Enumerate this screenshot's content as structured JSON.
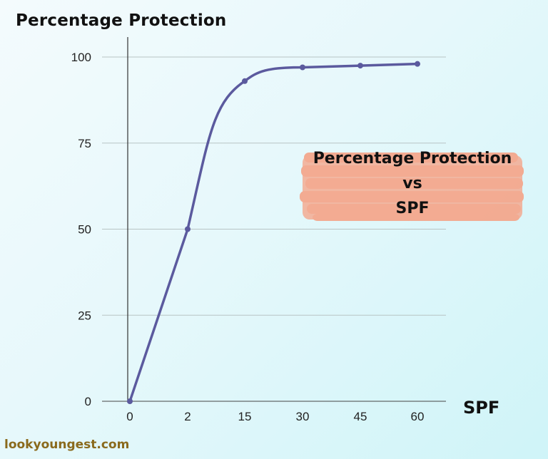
{
  "chart_data": {
    "type": "line",
    "title": "Percentage Protection vs SPF",
    "xlabel": "SPF",
    "ylabel": "Percentage Protection",
    "categories": [
      "0",
      "2",
      "15",
      "30",
      "45",
      "60"
    ],
    "series": [
      {
        "name": "Percentage Protection",
        "values": [
          0,
          50,
          93,
          97,
          97.5,
          98
        ],
        "color": "#5b5a9e"
      }
    ],
    "yticks": [
      0,
      25,
      50,
      75,
      100
    ],
    "ylim": [
      0,
      100
    ],
    "grid": true,
    "smooth": true,
    "annotation": {
      "lines": [
        "Percentage Protection",
        "vs",
        "SPF"
      ],
      "background": "#f4a58a"
    }
  },
  "labels": {
    "y_title": "Percentage Protection",
    "x_title": "SPF",
    "annotation_line1": "Percentage Protection",
    "annotation_line2": "vs",
    "annotation_line3": "SPF",
    "watermark": "lookyoungest.com"
  },
  "colors": {
    "line": "#5b5a9e",
    "grid": "#b8c4c4",
    "axis": "#333333",
    "highlight": "#f4a58a",
    "watermark": "#8a6a1c"
  }
}
